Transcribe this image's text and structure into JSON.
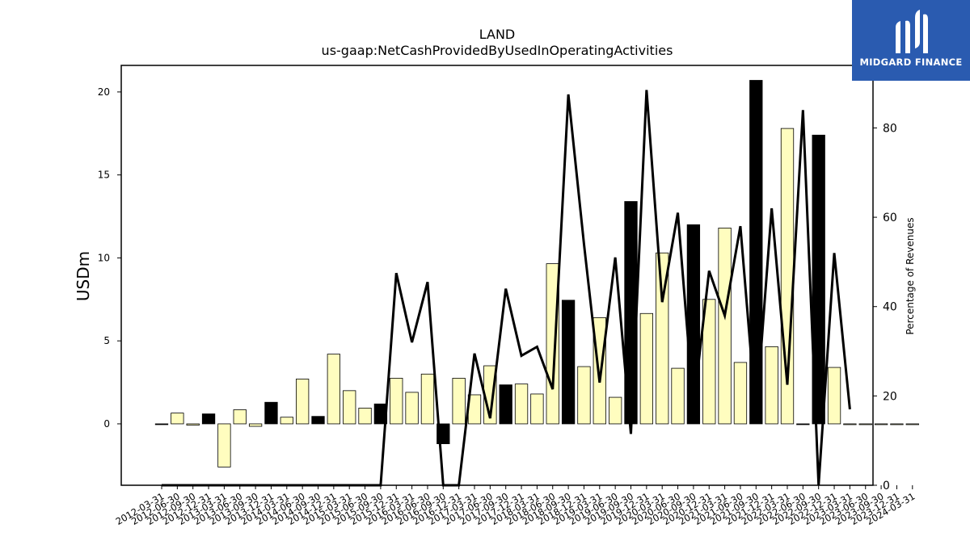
{
  "chart_data": {
    "type": "bar",
    "title": "LAND",
    "subtitle": "us-gaap:NetCashProvidedByUsedInOperatingActivities",
    "ylabel": "USDm",
    "y2label": "Percentage of Revenues",
    "ylim": [
      -3.7,
      21.6
    ],
    "y2lim": [
      0,
      94
    ],
    "yticks": [
      0,
      5,
      10,
      15,
      20
    ],
    "y2ticks": [
      0,
      20,
      40,
      60,
      80
    ],
    "categories": [
      "2012-03-31",
      "2012-06-30",
      "2012-09-30",
      "2012-12-31",
      "2013-03-31",
      "2013-06-30",
      "2013-09-30",
      "2013-12-31",
      "2014-03-31",
      "2014-06-30",
      "2014-09-30",
      "2014-12-31",
      "2015-03-31",
      "2015-06-30",
      "2015-09-30",
      "2015-12-31",
      "2016-03-31",
      "2016-06-30",
      "2016-09-30",
      "2016-12-31",
      "2017-03-31",
      "2017-06-30",
      "2017-09-30",
      "2017-12-31",
      "2018-03-31",
      "2018-06-30",
      "2018-09-30",
      "2018-12-31",
      "2019-03-31",
      "2019-06-30",
      "2019-09-30",
      "2019-12-31",
      "2020-03-31",
      "2020-06-30",
      "2020-09-30",
      "2020-12-31",
      "2021-03-31",
      "2021-06-30",
      "2021-09-30",
      "2021-12-31",
      "2022-03-31",
      "2022-06-30",
      "2022-09-30",
      "2022-12-31",
      "2023-03-31",
      "2023-06-30",
      "2023-09-30",
      "2023-12-31",
      "2024-03-31"
    ],
    "xtick_labels": [
      "2012-03-31",
      "2012-06-30",
      "2012-09-30",
      "2012-12-31",
      "2013-03-31",
      "2013-06-30",
      "2013-09-30",
      "2013-12-31",
      "2014-03-31",
      "2014-06-30",
      "2014-09-30",
      "2014-12-31",
      "2015-03-31",
      "2015-06-30",
      "2015-09-30",
      "2015-12-31",
      "2016-03-31",
      "2016-06-30",
      "2016-09-30",
      "2016-12-31",
      "2017-03-31",
      "2017-06-30",
      "2017-09-30",
      "2017-12-31",
      "2018-03-31",
      "2018-06-30",
      "2018-09-30",
      "2018-12-31",
      "2019-03-31",
      "2019-06-30",
      "2019-09-30",
      "2019-12-31",
      "2020-03-31",
      "2020-06-30",
      "2020-09-30",
      "2020-12-31",
      "2021-03-31",
      "2021-06-30",
      "2021-09-30",
      "2021-12-31",
      "2022-03-31",
      "2022-06-30",
      "2022-09-30",
      "2022-12-31",
      "2023-03-31",
      "2023-06-30",
      "2023-09-30",
      "2023-12-31",
      "2024-03-31"
    ],
    "series": [
      {
        "type": "bar",
        "axis": "left",
        "values": [
          -0.02,
          0.65,
          -0.08,
          0.6,
          -2.6,
          0.85,
          -0.15,
          1.3,
          0.4,
          2.7,
          0.45,
          4.2,
          2.0,
          0.95,
          1.2,
          2.75,
          1.9,
          3.0,
          -1.2,
          2.75,
          1.75,
          3.5,
          2.35,
          2.4,
          1.8,
          9.65,
          7.45,
          3.45,
          6.4,
          1.6,
          13.4,
          6.65,
          10.3,
          3.35,
          12.0,
          7.5,
          11.8,
          3.7,
          20.7,
          4.65,
          17.8,
          0.0,
          17.4,
          3.4,
          0.0,
          0.0,
          0.0,
          0.0,
          0.0
        ],
        "fills": [
          "#000000",
          "#fffdbf",
          "#fffdbf",
          "#000000",
          "#fffdbf",
          "#fffdbf",
          "#fffdbf",
          "#000000",
          "#fffdbf",
          "#fffdbf",
          "#000000",
          "#fffdbf",
          "#fffdbf",
          "#fffdbf",
          "#000000",
          "#fffdbf",
          "#fffdbf",
          "#fffdbf",
          "#000000",
          "#fffdbf",
          "#fffdbf",
          "#fffdbf",
          "#000000",
          "#fffdbf",
          "#fffdbf",
          "#fffdbf",
          "#000000",
          "#fffdbf",
          "#fffdbf",
          "#fffdbf",
          "#000000",
          "#fffdbf",
          "#fffdbf",
          "#fffdbf",
          "#000000",
          "#fffdbf",
          "#fffdbf",
          "#fffdbf",
          "#000000",
          "#fffdbf",
          "#fffdbf",
          "#000000",
          "#000000",
          "#fffdbf",
          "#fffdbf",
          "#fffdbf",
          "#fffdbf",
          "#fffdbf",
          "#fffdbf"
        ]
      },
      {
        "type": "line",
        "axis": "right",
        "values": [
          0,
          0,
          0,
          0,
          0,
          0,
          0,
          0,
          0,
          0,
          0,
          0,
          0,
          0,
          0,
          47.5,
          32,
          45.5,
          0,
          0,
          29.5,
          15,
          44,
          29,
          31,
          21.5,
          87.5,
          54,
          23,
          51,
          11.5,
          88.5,
          41,
          61,
          17.5,
          48,
          38,
          58,
          15.5,
          62,
          22.5,
          84,
          0,
          52,
          17,
          null,
          null,
          null,
          null
        ]
      }
    ],
    "grid": false,
    "legend": "none"
  },
  "logo": {
    "text": "MIDGARD FINANCE",
    "color": "#2a5bb0"
  }
}
